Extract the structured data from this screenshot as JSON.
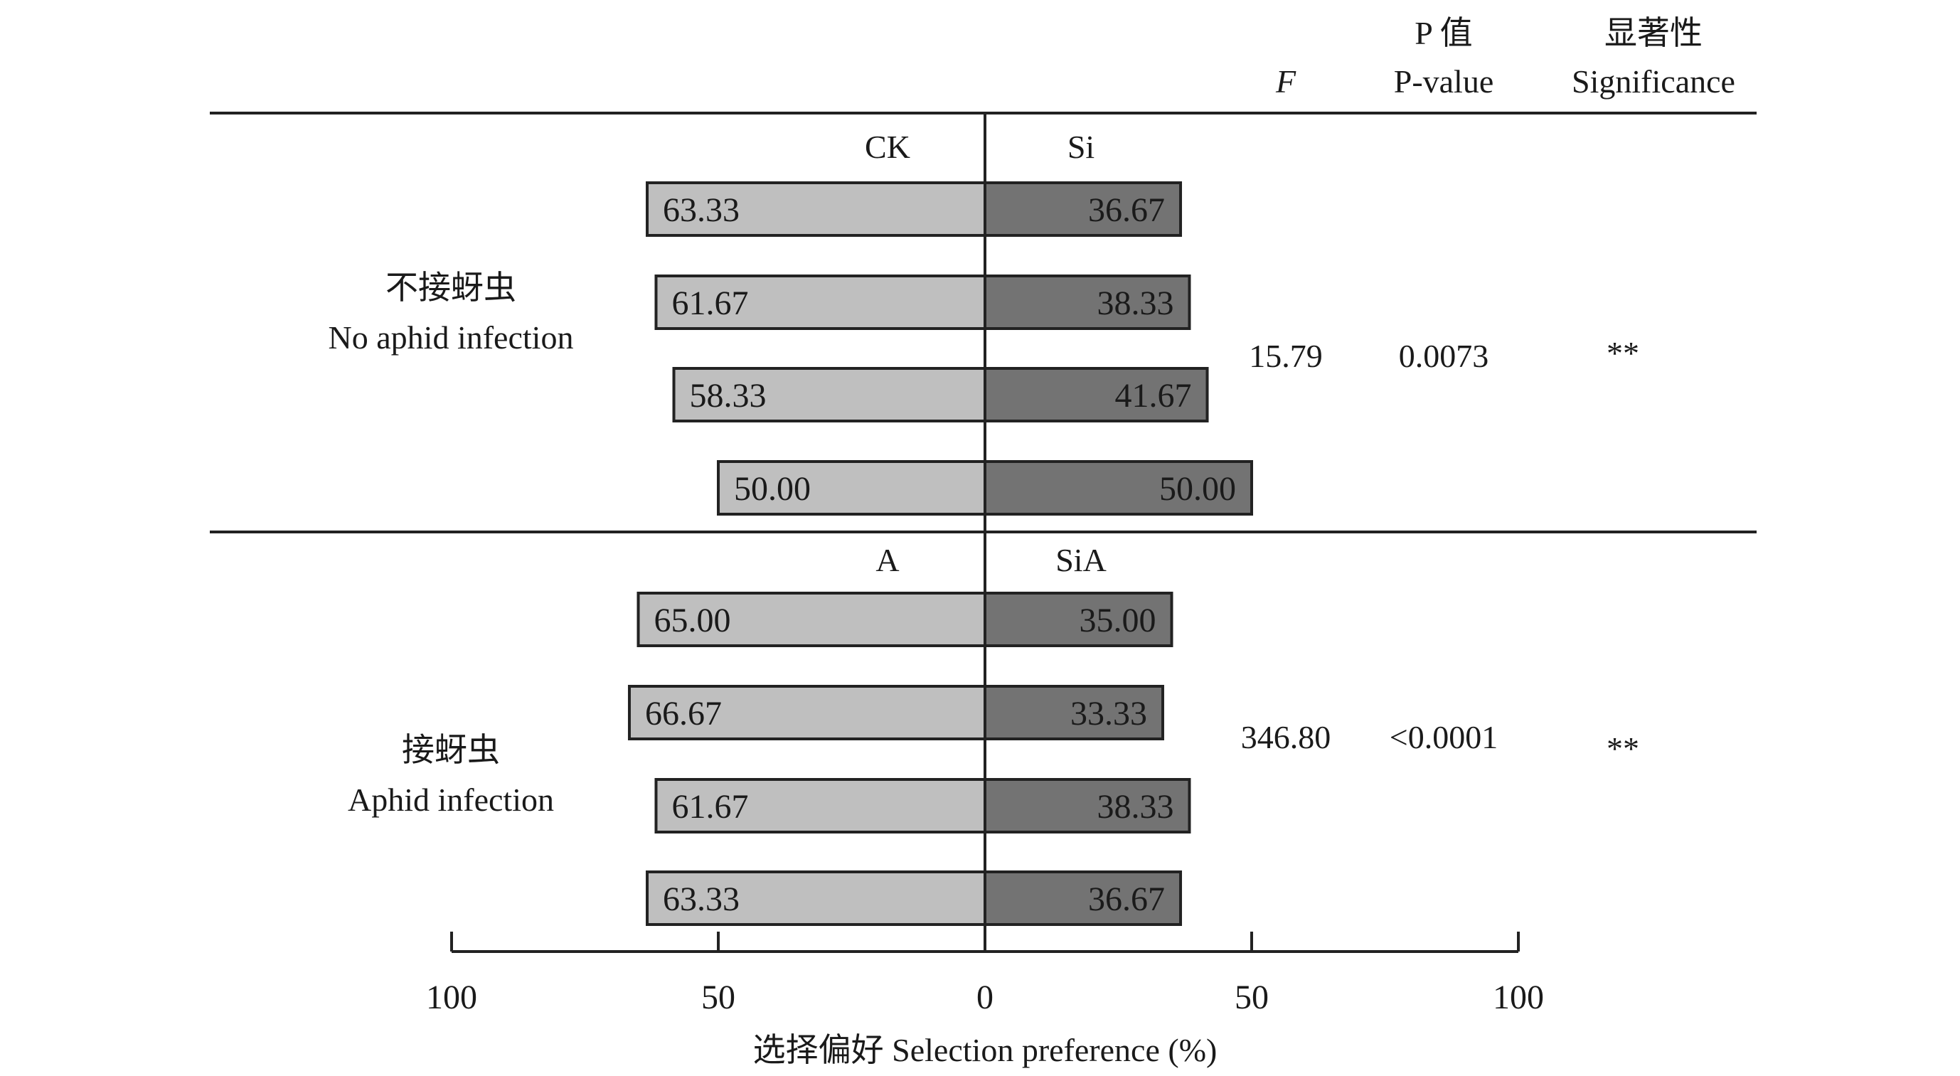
{
  "chart_data": {
    "type": "bar",
    "orientation": "diverging-horizontal",
    "xlabel": "选择偏好 Selection preference (%)",
    "xlim": [
      -100,
      100
    ],
    "x_ticks": [
      {
        "value": -100,
        "label": "100"
      },
      {
        "value": -50,
        "label": "50"
      },
      {
        "value": 0,
        "label": "0"
      },
      {
        "value": 50,
        "label": "50"
      },
      {
        "value": 100,
        "label": "100"
      }
    ],
    "grid": false,
    "colors": {
      "left": "#bfbfbf",
      "right": "#737373",
      "border": "#222222"
    },
    "column_headers": {
      "f": "F",
      "p_value_cn": "P 值",
      "p_value_en": "P-value",
      "significance_cn": "显著性",
      "significance_en": "Significance"
    },
    "groups": [
      {
        "name_cn": "不接蚜虫",
        "name_en": "No aphid infection",
        "left_label": "CK",
        "right_label": "Si",
        "left_values": [
          63.33,
          61.67,
          58.33,
          50.0
        ],
        "right_values": [
          36.67,
          38.33,
          41.67,
          50.0
        ],
        "left_text": [
          "63.33",
          "61.67",
          "58.33",
          "50.00"
        ],
        "right_text": [
          "36.67",
          "38.33",
          "41.67",
          "50.00"
        ],
        "F": "15.79",
        "p_value": "0.0073",
        "significance": "**"
      },
      {
        "name_cn": "接蚜虫",
        "name_en": "Aphid infection",
        "left_label": "A",
        "right_label": "SiA",
        "left_values": [
          65.0,
          66.67,
          61.67,
          63.33
        ],
        "right_values": [
          35.0,
          33.33,
          38.33,
          36.67
        ],
        "left_text": [
          "65.00",
          "66.67",
          "61.67",
          "63.33"
        ],
        "right_text": [
          "35.00",
          "33.33",
          "38.33",
          "36.67"
        ],
        "F": "346.80",
        "p_value": "<0.0001",
        "significance": "**"
      }
    ]
  }
}
